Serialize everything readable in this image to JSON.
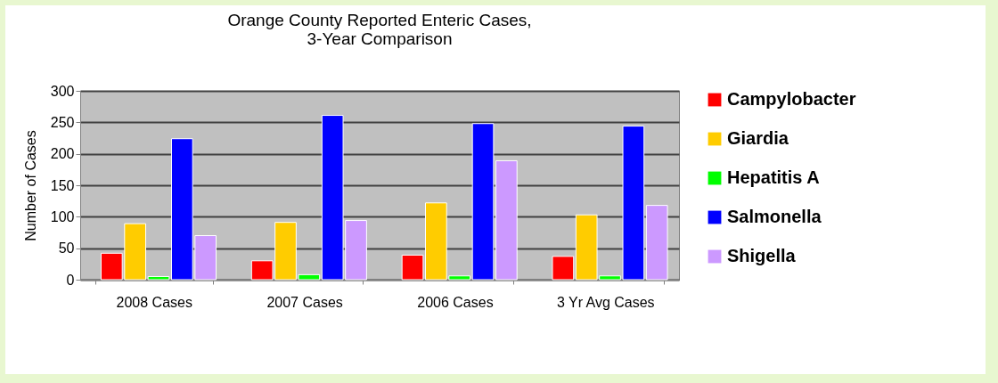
{
  "chart_data": {
    "type": "bar",
    "title": [
      "Orange County Reported Enteric Cases,",
      "3-Year Comparison"
    ],
    "ylabel": "Number of Cases",
    "categories": [
      "2008 Cases",
      "2007 Cases",
      "2006 Cases",
      "3 Yr Avg Cases"
    ],
    "series": [
      {
        "name": "Campylobacter",
        "color": "#ff0000",
        "values": [
          42,
          30,
          39,
          37
        ]
      },
      {
        "name": "Giardia",
        "color": "#ffcc00",
        "values": [
          89,
          91,
          122,
          103
        ]
      },
      {
        "name": "Hepatitis A",
        "color": "#00ff00",
        "values": [
          5,
          8,
          6,
          6
        ]
      },
      {
        "name": "Salmonella",
        "color": "#0000ff",
        "values": [
          224,
          261,
          248,
          244
        ]
      },
      {
        "name": "Shigella",
        "color": "#cc99ff",
        "values": [
          70,
          94,
          189,
          118
        ]
      }
    ],
    "ylim": [
      0,
      300
    ],
    "yticks": [
      0,
      50,
      100,
      150,
      200,
      250,
      300
    ],
    "grid": "y",
    "legend": "right"
  }
}
